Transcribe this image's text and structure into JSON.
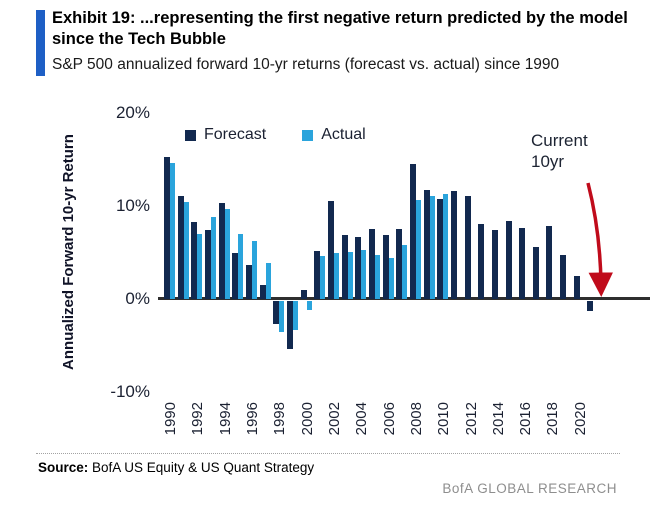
{
  "header": {
    "exhibit_title": "Exhibit 19: ...representing the first negative return predicted by the model since the Tech Bubble",
    "subtitle": "S&P 500 annualized forward 10-yr returns (forecast vs. actual) since 1990"
  },
  "legend": [
    {
      "label": "Forecast",
      "color": "#12294f"
    },
    {
      "label": "Actual",
      "color": "#2aa4dc"
    }
  ],
  "chart_data": {
    "type": "bar",
    "title": "S&P 500 annualized forward 10-yr returns (forecast vs. actual) since 1990",
    "ylabel": "Annualized Forward 10-yr Return",
    "ylim": [
      -10,
      20
    ],
    "grid": false,
    "legend_position": "top",
    "y_ticks": [
      {
        "label": "20%",
        "v": 20
      },
      {
        "label": "10%",
        "v": 10
      },
      {
        "label": "0%",
        "v": 0
      },
      {
        "label": "-10%",
        "v": -10
      }
    ],
    "x_tick_years": [
      1990,
      1992,
      1994,
      1996,
      1998,
      2000,
      2002,
      2004,
      2006,
      2008,
      2010,
      2012,
      2014,
      2016,
      2018,
      2020
    ],
    "categories": [
      1990,
      1991,
      1992,
      1993,
      1994,
      1995,
      1996,
      1997,
      1998,
      1999,
      2000,
      2001,
      2002,
      2003,
      2004,
      2005,
      2006,
      2007,
      2008,
      2009,
      2010,
      2011,
      2012,
      2013,
      2014,
      2015,
      2016,
      2017,
      2018,
      2019,
      2020,
      2021
    ],
    "series": [
      {
        "name": "Forecast",
        "color": "#12294f",
        "values": [
          15.2,
          11.0,
          8.3,
          7.4,
          10.3,
          4.9,
          3.6,
          1.5,
          -2.5,
          -5.2,
          1.0,
          5.1,
          10.5,
          6.9,
          6.6,
          7.5,
          6.9,
          7.5,
          14.5,
          11.7,
          10.7,
          11.6,
          11.0,
          8.0,
          7.4,
          8.4,
          7.6,
          5.6,
          7.8,
          4.7,
          2.5,
          -1.1
        ]
      },
      {
        "name": "Actual",
        "color": "#2aa4dc",
        "values": [
          14.6,
          10.4,
          7.0,
          8.8,
          9.7,
          7.0,
          6.2,
          3.9,
          -3.3,
          -3.1,
          -1.0,
          4.6,
          4.9,
          5.0,
          5.3,
          4.7,
          4.4,
          5.8,
          10.6,
          11.0,
          11.3,
          null,
          null,
          null,
          null,
          null,
          null,
          null,
          null,
          null,
          null,
          null
        ]
      }
    ],
    "annotation": {
      "label": "Current 10yr",
      "arrow_color": "#c00b1b"
    }
  },
  "footer": {
    "source_label": "Source:",
    "source_text": " BofA US Equity & US Quant Strategy",
    "brand": "BofA GLOBAL RESEARCH"
  }
}
